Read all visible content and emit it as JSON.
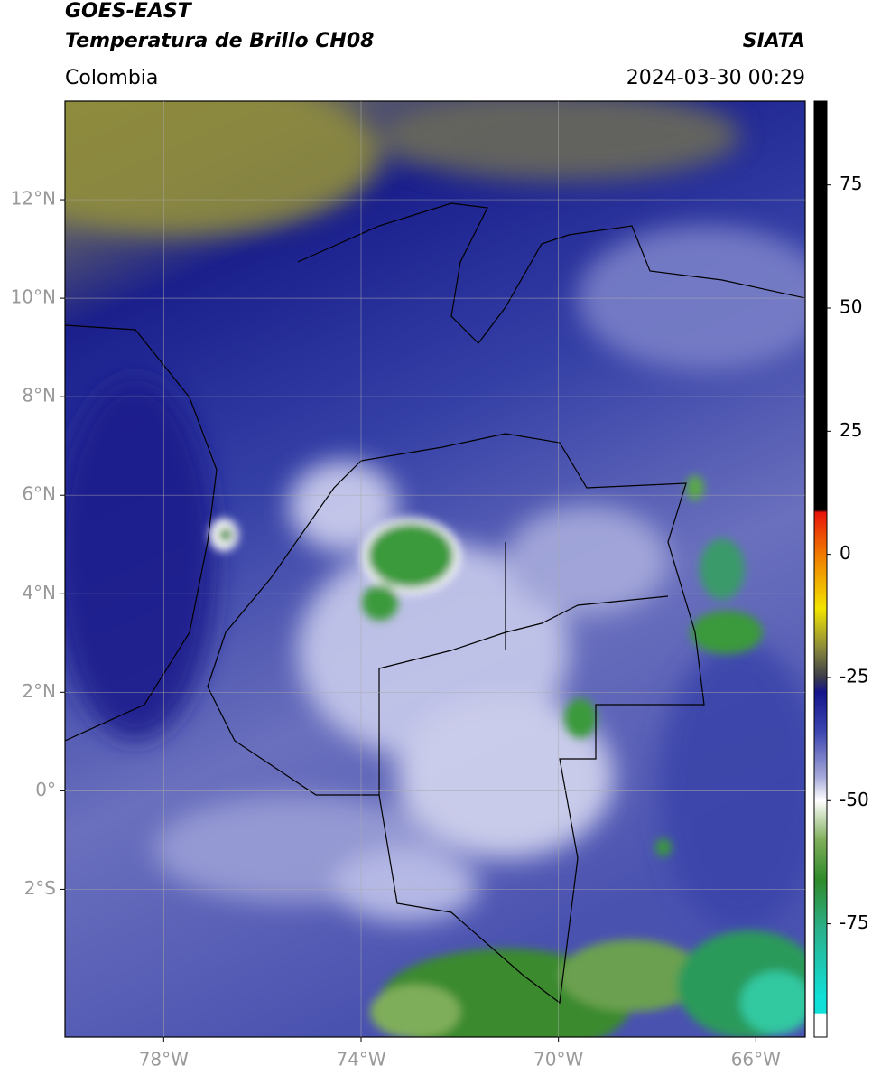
{
  "header": {
    "title": "GOES-EAST",
    "subtitle": "Temperatura de Brillo CH08",
    "source": "SIATA",
    "region": "Colombia",
    "datetime": "2024-03-30 00:29"
  },
  "map": {
    "xlim": [
      -80,
      -65
    ],
    "ylim": [
      -5,
      14
    ],
    "grid": true,
    "xticks": [
      {
        "value": -78,
        "label": "78°W"
      },
      {
        "value": -74,
        "label": "74°W"
      },
      {
        "value": -70,
        "label": "70°W"
      },
      {
        "value": -66,
        "label": "66°W"
      }
    ],
    "yticks": [
      {
        "value": 12,
        "label": "12°N"
      },
      {
        "value": 10,
        "label": "10°N"
      },
      {
        "value": 8,
        "label": "8°N"
      },
      {
        "value": 6,
        "label": "6°N"
      },
      {
        "value": 4,
        "label": "4°N"
      },
      {
        "value": 2,
        "label": "2°N"
      },
      {
        "value": 0,
        "label": "0°"
      },
      {
        "value": -2,
        "label": "2°S"
      }
    ]
  },
  "colorbar": {
    "lim": [
      -98,
      92
    ],
    "ticks": [
      75,
      50,
      25,
      0,
      -25,
      -50,
      -75
    ],
    "stops": [
      {
        "value": 92,
        "color": "#000000"
      },
      {
        "value": 9,
        "color": "#000000"
      },
      {
        "value": 8.5,
        "color": "#e8140a"
      },
      {
        "value": 0,
        "color": "#f07a00"
      },
      {
        "value": -11,
        "color": "#f2e400"
      },
      {
        "value": -19,
        "color": "#8a8a3a"
      },
      {
        "value": -25,
        "color": "#3b3b4a"
      },
      {
        "value": -28,
        "color": "#14148c"
      },
      {
        "value": -36,
        "color": "#3c46b0"
      },
      {
        "value": -45,
        "color": "#a3a6d8"
      },
      {
        "value": -50,
        "color": "#ffffff"
      },
      {
        "value": -58,
        "color": "#7fae5a"
      },
      {
        "value": -66,
        "color": "#2f8a2a"
      },
      {
        "value": -76,
        "color": "#2ab08a"
      },
      {
        "value": -90,
        "color": "#10e0d8"
      },
      {
        "value": -93,
        "color": "#10e0d8"
      },
      {
        "value": -93.5,
        "color": "#ffffff"
      },
      {
        "value": -98,
        "color": "#ffffff"
      }
    ]
  }
}
